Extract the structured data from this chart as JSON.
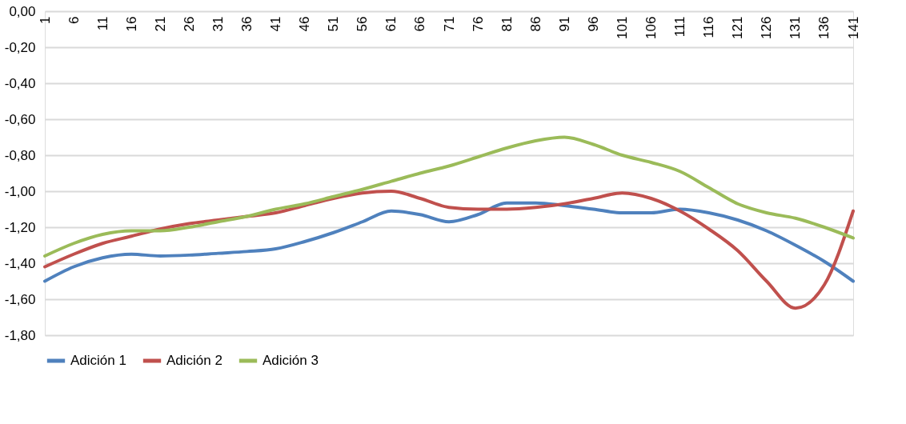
{
  "chart_data": {
    "type": "line",
    "x": [
      1,
      6,
      11,
      16,
      21,
      26,
      31,
      36,
      41,
      46,
      51,
      56,
      61,
      66,
      71,
      76,
      81,
      86,
      91,
      96,
      101,
      106,
      111,
      116,
      121,
      126,
      131,
      136,
      141
    ],
    "series": [
      {
        "name": "Adición 1",
        "color": "#4f81bd",
        "values": [
          -1.5,
          -1.42,
          -1.37,
          -1.35,
          -1.36,
          -1.355,
          -1.345,
          -1.335,
          -1.32,
          -1.28,
          -1.23,
          -1.17,
          -1.11,
          -1.13,
          -1.17,
          -1.13,
          -1.065,
          -1.065,
          -1.08,
          -1.1,
          -1.12,
          -1.12,
          -1.1,
          -1.12,
          -1.16,
          -1.22,
          -1.3,
          -1.39,
          -1.5
        ]
      },
      {
        "name": "Adición 2",
        "color": "#c0504d",
        "values": [
          -1.42,
          -1.35,
          -1.29,
          -1.25,
          -1.21,
          -1.18,
          -1.16,
          -1.14,
          -1.12,
          -1.08,
          -1.04,
          -1.01,
          -1.0,
          -1.04,
          -1.09,
          -1.1,
          -1.1,
          -1.09,
          -1.07,
          -1.04,
          -1.01,
          -1.04,
          -1.11,
          -1.21,
          -1.33,
          -1.5,
          -1.65,
          -1.52,
          -1.11
        ]
      },
      {
        "name": "Adición 3",
        "color": "#9bbb59",
        "values": [
          -1.36,
          -1.29,
          -1.24,
          -1.22,
          -1.22,
          -1.2,
          -1.17,
          -1.14,
          -1.1,
          -1.07,
          -1.03,
          -0.99,
          -0.945,
          -0.9,
          -0.86,
          -0.81,
          -0.76,
          -0.72,
          -0.7,
          -0.74,
          -0.8,
          -0.84,
          -0.89,
          -0.98,
          -1.07,
          -1.12,
          -1.15,
          -1.2,
          -1.26
        ]
      }
    ],
    "xlim": [
      1,
      141
    ],
    "xticks": [
      1,
      6,
      11,
      16,
      21,
      26,
      31,
      36,
      41,
      46,
      51,
      56,
      61,
      66,
      71,
      76,
      81,
      86,
      91,
      96,
      101,
      106,
      111,
      116,
      121,
      126,
      131,
      136,
      141
    ],
    "ylim": [
      -1.8,
      0
    ],
    "yticks": [
      {
        "value": 0,
        "label": "0,00"
      },
      {
        "value": -0.2,
        "label": "-0,20"
      },
      {
        "value": -0.4,
        "label": "-0,40"
      },
      {
        "value": -0.6,
        "label": "-0,60"
      },
      {
        "value": -0.8,
        "label": "-0,80"
      },
      {
        "value": -1.0,
        "label": "-1,00"
      },
      {
        "value": -1.2,
        "label": "-1,20"
      },
      {
        "value": -1.4,
        "label": "-1,40"
      },
      {
        "value": -1.6,
        "label": "-1,60"
      },
      {
        "value": -1.8,
        "label": "-1,80"
      }
    ],
    "grid": "y",
    "legend": "bottom",
    "marker": "none",
    "line_style": "solid"
  }
}
